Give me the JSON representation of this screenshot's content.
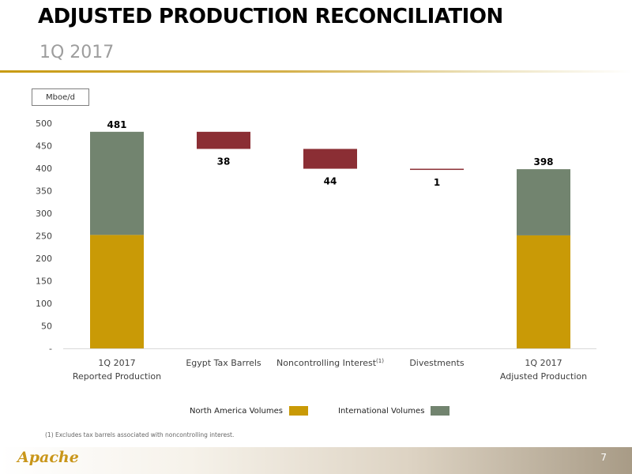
{
  "header": {
    "title": "ADJUSTED PRODUCTION RECONCILIATION",
    "subtitle": "1Q 2017"
  },
  "unit_label": "Mboe/d",
  "chart_data": {
    "type": "bar",
    "subtype": "waterfall",
    "unit": "Mboe/d",
    "ylim": [
      0,
      500
    ],
    "yticks": [
      0,
      50,
      100,
      150,
      200,
      250,
      300,
      350,
      400,
      450,
      500
    ],
    "ytick_labels": [
      "-",
      "50",
      "100",
      "150",
      "200",
      "250",
      "300",
      "350",
      "400",
      "450",
      "500"
    ],
    "categories": [
      {
        "line1": "1Q 2017",
        "line2": "Reported Production",
        "sup": ""
      },
      {
        "line1": "Egypt Tax Barrels",
        "line2": "",
        "sup": ""
      },
      {
        "line1": "Noncontrolling Interest",
        "line2": "",
        "sup": "(1)"
      },
      {
        "line1": "Divestments",
        "line2": "",
        "sup": ""
      },
      {
        "line1": "1Q 2017",
        "line2": "Adjusted Production",
        "sup": ""
      }
    ],
    "totals": [
      {
        "index": 0,
        "total": 481,
        "north_america": 252,
        "international": 229
      },
      {
        "index": 4,
        "total": 398,
        "north_america": 251,
        "international": 147
      }
    ],
    "deductions": [
      {
        "index": 1,
        "from": 481,
        "to": 443,
        "label": "38"
      },
      {
        "index": 2,
        "from": 443,
        "to": 399,
        "label": "44"
      },
      {
        "index": 3,
        "from": 399,
        "to": 398,
        "label": "1"
      }
    ],
    "total_labels": [
      "481",
      "398"
    ],
    "series": [
      {
        "name": "North America Volumes",
        "color": "#c99a06"
      },
      {
        "name": "International Volumes",
        "color": "#72846f"
      }
    ],
    "deduction_color": "#8b2e34",
    "grid": false,
    "legend_position": "bottom"
  },
  "footnote": "(1)  Excludes tax barrels associated with noncontrolling interest.",
  "footer": {
    "logo_text": "Apache",
    "page_number": "7"
  }
}
